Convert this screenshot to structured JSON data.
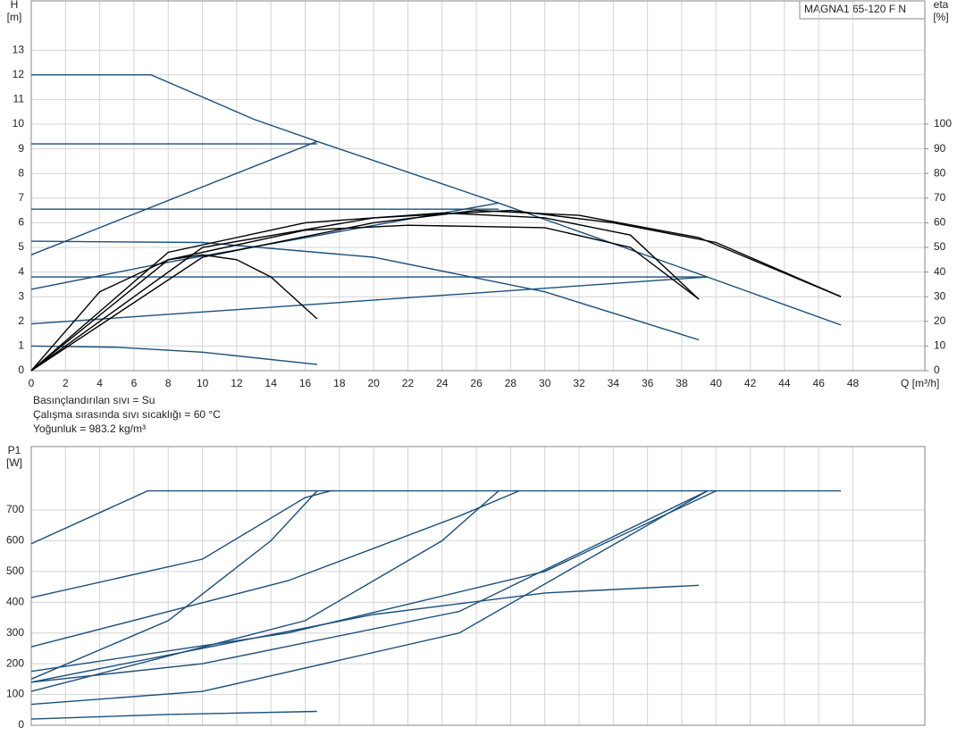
{
  "chart_data": [
    {
      "type": "line",
      "title": "MAGNA1 65-120 F N",
      "ylabel": "H",
      "yunit": "[m]",
      "y2label": "eta",
      "y2unit": "[%]",
      "xlabel": "Q [m³/h]",
      "annotations": [
        "Basınçlandırılan sıvı = Su",
        "Çalışma sırasında sıvı sıcaklığı = 60 °C",
        "Yoğunluk = 983.2 kg/m³"
      ],
      "xlim": [
        0,
        52.2
      ],
      "xticks": [
        0,
        2,
        4,
        6,
        8,
        10,
        12,
        14,
        16,
        18,
        20,
        22,
        24,
        26,
        28,
        30,
        32,
        34,
        36,
        38,
        40,
        42,
        44,
        46,
        48
      ],
      "ylim": [
        0,
        15
      ],
      "yticks": [
        0,
        1,
        2,
        3,
        4,
        5,
        6,
        7,
        8,
        9,
        10,
        11,
        12,
        13
      ],
      "y2lim": [
        0,
        150
      ],
      "y2ticks": [
        0,
        10,
        20,
        30,
        40,
        50,
        60,
        70,
        80,
        90,
        100
      ],
      "grid": true,
      "series": [
        {
          "color": "#1b4f7c",
          "x": [
            0,
            7,
            10,
            13,
            16.7,
            27.3,
            39.5,
            47.3
          ],
          "values": [
            12,
            12,
            11.1,
            10.2,
            9.3,
            6.8,
            3.8,
            1.85
          ]
        },
        {
          "color": "#1b4f7c",
          "x": [
            0,
            16.7
          ],
          "values": [
            9.2,
            9.2
          ]
        },
        {
          "color": "#1b4f7c",
          "x": [
            0,
            27.3
          ],
          "values": [
            6.55,
            6.55
          ]
        },
        {
          "color": "#1b4f7c",
          "x": [
            0,
            39.5
          ],
          "values": [
            3.8,
            3.8
          ]
        },
        {
          "color": "#1b4f7c",
          "x": [
            0,
            16.7
          ],
          "values": [
            4.7,
            9.3
          ]
        },
        {
          "color": "#1b4f7c",
          "x": [
            0,
            8,
            27.3
          ],
          "values": [
            3.3,
            4.4,
            6.8
          ]
        },
        {
          "color": "#1b4f7c",
          "x": [
            0,
            39.5
          ],
          "values": [
            1.9,
            3.8
          ]
        },
        {
          "color": "#1b4f7c",
          "x": [
            0,
            10,
            20,
            30,
            39
          ],
          "values": [
            5.25,
            5.2,
            4.6,
            3.2,
            1.25
          ]
        },
        {
          "color": "#1b4f7c",
          "x": [
            0,
            5,
            10,
            16.7
          ],
          "values": [
            1,
            0.95,
            0.75,
            0.25
          ]
        },
        {
          "color": "#000000",
          "axis": "y2",
          "x": [
            0,
            4,
            8,
            10,
            12,
            14,
            16.7
          ],
          "values": [
            0,
            32,
            45,
            47,
            45,
            38,
            21
          ]
        },
        {
          "color": "#000000",
          "axis": "y2",
          "x": [
            0,
            8,
            16,
            22,
            30,
            35,
            39
          ],
          "values": [
            0,
            45,
            57,
            59,
            58,
            50,
            29
          ]
        },
        {
          "color": "#000000",
          "axis": "y2",
          "x": [
            0,
            8,
            16,
            24,
            30,
            35,
            39
          ],
          "values": [
            0,
            48,
            60,
            64,
            62,
            55,
            29
          ]
        },
        {
          "color": "#000000",
          "axis": "y2",
          "x": [
            0,
            10,
            20,
            28,
            34,
            40,
            47.3
          ],
          "values": [
            0,
            50,
            62,
            65,
            60,
            52,
            30
          ]
        },
        {
          "color": "#000000",
          "axis": "y2",
          "x": [
            0,
            10,
            20,
            26,
            32,
            39,
            47.3
          ],
          "values": [
            0,
            46,
            60,
            65,
            63,
            54,
            30
          ]
        }
      ]
    },
    {
      "type": "line",
      "ylabel": "P1",
      "yunit": "[W]",
      "xlim": [
        0,
        52.2
      ],
      "ylim": [
        0,
        906
      ],
      "yticks": [
        0,
        100,
        200,
        300,
        400,
        500,
        600,
        700
      ],
      "grid": true,
      "series": [
        {
          "color": "#1b4f7c",
          "x": [
            0,
            6.8,
            47.3
          ],
          "values": [
            590,
            762,
            762
          ]
        },
        {
          "color": "#1b4f7c",
          "x": [
            0,
            10,
            16,
            17.5
          ],
          "values": [
            415,
            540,
            740,
            762
          ]
        },
        {
          "color": "#1b4f7c",
          "x": [
            0,
            8,
            14,
            16.7
          ],
          "values": [
            150,
            340,
            600,
            762
          ]
        },
        {
          "color": "#1b4f7c",
          "x": [
            0,
            15,
            25,
            28.5
          ],
          "values": [
            255,
            470,
            680,
            762
          ]
        },
        {
          "color": "#1b4f7c",
          "x": [
            0,
            16,
            24,
            27.3
          ],
          "values": [
            110,
            340,
            600,
            762
          ]
        },
        {
          "color": "#1b4f7c",
          "x": [
            0,
            15,
            30,
            40
          ],
          "values": [
            175,
            300,
            500,
            762
          ]
        },
        {
          "color": "#1b4f7c",
          "x": [
            0,
            10,
            25,
            39.5
          ],
          "values": [
            140,
            200,
            370,
            762
          ]
        },
        {
          "color": "#1b4f7c",
          "x": [
            0,
            10,
            25,
            39.5
          ],
          "values": [
            68,
            110,
            300,
            762
          ]
        },
        {
          "color": "#1b4f7c",
          "x": [
            0,
            20,
            30,
            39
          ],
          "values": [
            140,
            360,
            430,
            455
          ]
        },
        {
          "color": "#1b4f7c",
          "x": [
            0,
            8,
            16.7
          ],
          "values": [
            20,
            35,
            45
          ]
        }
      ]
    }
  ]
}
